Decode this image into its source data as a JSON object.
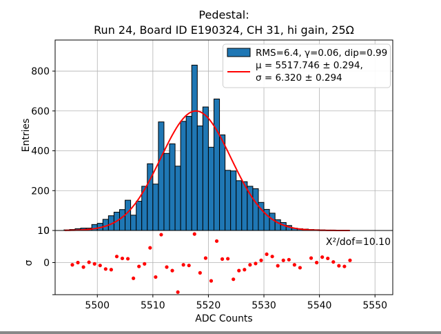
{
  "title": {
    "line1": "Pedestal:",
    "line2": "Run 24, Board ID E190324, CH 31, hi gain, 25Ω"
  },
  "legend": {
    "hist_label": "RMS=6.4, γ=0.06, dip=0.99",
    "fit_label_line1": "μ = 5517.746 ± 0.294,",
    "fit_label_line2": "σ = 6.320 ± 0.294"
  },
  "annotation": {
    "chi2_text": "Χ²/dof=10.10"
  },
  "axes": {
    "main": {
      "ylabel": "Entries",
      "ytick_labels": [
        "200",
        "400",
        "600",
        "800"
      ],
      "ytick_values": [
        200,
        400,
        600,
        800
      ],
      "zero_label": "0",
      "shared_boundary_label": "10"
    },
    "residual": {
      "ylabel": "σ",
      "ytick_labels": [
        "0"
      ],
      "ytick_values": [
        0
      ]
    },
    "x": {
      "label": "ADC Counts",
      "tick_labels": [
        "5500",
        "5510",
        "5520",
        "5530",
        "5540",
        "5550"
      ],
      "tick_values": [
        5500,
        5510,
        5520,
        5530,
        5540,
        5550
      ]
    }
  },
  "colors": {
    "bar_fill": "#1f77b4",
    "bar_edge": "#000000",
    "fit_line": "#ff0000",
    "residual_dot": "#ff0000",
    "grid": "#b2b2b2",
    "spine": "#000000",
    "legend_border": "#cccccc",
    "legend_bg": "#ffffff"
  },
  "chart_data": {
    "type": "histogram+line+scatter",
    "title": "Pedestal: Run 24, Board ID E190324, CH 31, hi gain, 25Ω",
    "xlabel": "ADC Counts",
    "xlim": [
      5492.4,
      5553.2
    ],
    "grid": true,
    "legend_position": "upper right",
    "histogram": {
      "type": "bar",
      "name": "pedestal-entries",
      "ylabel": "Entries",
      "ylim": [
        0,
        956
      ],
      "bin_start": 5494,
      "bin_width": 1,
      "values": [
        3,
        5,
        9,
        12,
        12,
        30,
        36,
        56,
        74,
        92,
        105,
        152,
        77,
        147,
        222,
        335,
        233,
        545,
        387,
        435,
        323,
        548,
        573,
        830,
        525,
        620,
        418,
        660,
        480,
        302,
        299,
        250,
        245,
        222,
        210,
        141,
        106,
        87,
        54,
        40,
        25,
        12,
        9,
        7,
        5,
        4,
        3,
        2,
        2,
        1,
        1
      ],
      "label": "RMS=6.4, γ=0.06, dip=0.99"
    },
    "fit": {
      "type": "line",
      "name": "gaussian-fit",
      "label": "μ = 5517.746 ± 0.294, σ = 6.320 ± 0.294",
      "mu": 5517.746,
      "mu_err": 0.294,
      "sigma": 6.32,
      "sigma_err": 0.294,
      "amplitude": 600,
      "x_range": [
        5494.2,
        5545.5
      ],
      "chi2_per_dof": 10.1
    },
    "residuals": {
      "type": "scatter",
      "name": "fit-residuals",
      "ylabel": "σ",
      "ylim": [
        -10,
        10
      ],
      "x": [
        5495.5,
        5496.5,
        5497.5,
        5498.5,
        5499.5,
        5500.5,
        5501.5,
        5502.5,
        5503.5,
        5504.5,
        5505.5,
        5506.5,
        5507.5,
        5508.5,
        5509.5,
        5510.5,
        5511.5,
        5512.5,
        5513.5,
        5514.5,
        5515.5,
        5516.5,
        5517.5,
        5518.5,
        5519.5,
        5520.5,
        5521.5,
        5522.5,
        5523.5,
        5524.5,
        5525.5,
        5526.5,
        5527.5,
        5528.5,
        5529.5,
        5530.5,
        5531.5,
        5532.5,
        5533.5,
        5534.5,
        5535.5,
        5536.5,
        5538.5,
        5539.5,
        5540.5,
        5541.5,
        5542.5,
        5543.5,
        5544.5,
        5545.5
      ],
      "y": [
        -0.7,
        0.0,
        -1.4,
        0.1,
        -0.4,
        -0.9,
        -2.0,
        -2.2,
        1.9,
        1.3,
        1.2,
        -4.9,
        -1.2,
        -0.4,
        4.6,
        -4.5,
        8.7,
        -1.4,
        -2.5,
        -9.2,
        -0.7,
        -0.9,
        8.9,
        -3.2,
        1.4,
        -5.7,
        6.7,
        1.1,
        1.2,
        -5.2,
        -2.5,
        -2.2,
        -0.7,
        -0.3,
        0.7,
        2.6,
        1.9,
        -1.0,
        0.7,
        0.9,
        -0.7,
        -1.6,
        1.4,
        0.0,
        1.7,
        1.3,
        0.2,
        -1.0,
        -1.2,
        0.7
      ]
    }
  }
}
